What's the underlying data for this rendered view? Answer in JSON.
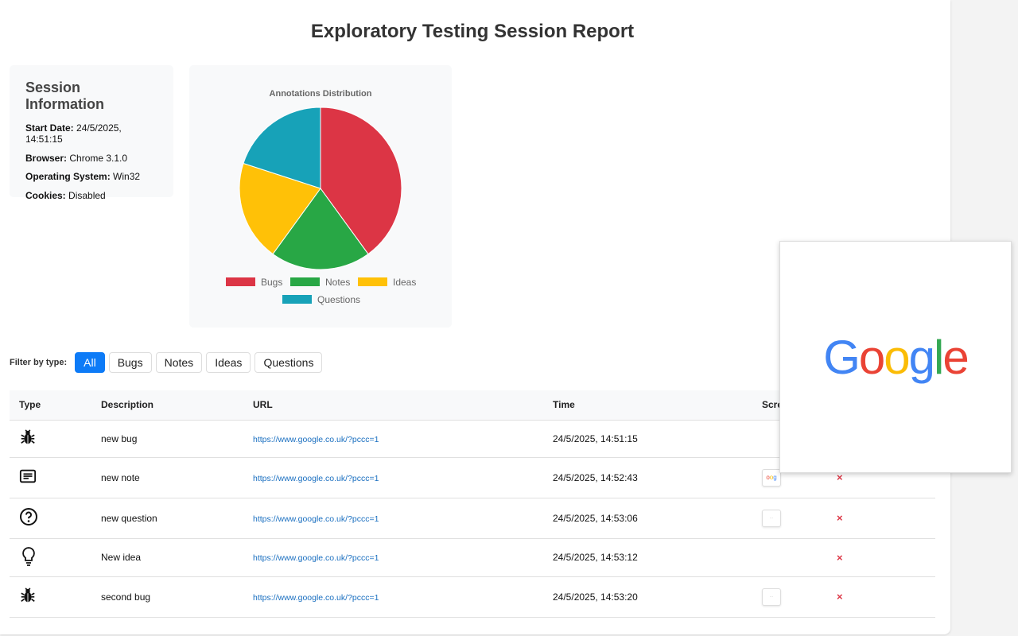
{
  "title": "Exploratory Testing Session Report",
  "session": {
    "heading": "Session Information",
    "fields": [
      {
        "label": "Start Date:",
        "value": "24/5/2025, 14:51:15"
      },
      {
        "label": "Browser:",
        "value": "Chrome 3.1.0"
      },
      {
        "label": "Operating System:",
        "value": "Win32"
      },
      {
        "label": "Cookies:",
        "value": "Disabled"
      }
    ]
  },
  "chart_data": {
    "type": "pie",
    "title": "Annotations Distribution",
    "categories": [
      "Bugs",
      "Notes",
      "Ideas",
      "Questions"
    ],
    "values": [
      2,
      1,
      1,
      1
    ],
    "colors": [
      "#dc3545",
      "#28a745",
      "#ffc107",
      "#17a2b8"
    ],
    "legend": "bottom"
  },
  "filter": {
    "label": "Filter by type:",
    "options": [
      "All",
      "Bugs",
      "Notes",
      "Ideas",
      "Questions"
    ],
    "active": "All"
  },
  "table": {
    "headers": [
      "Type",
      "Description",
      "URL",
      "Time",
      "Screenshot"
    ],
    "rows": [
      {
        "type": "bug",
        "icon": "bug-icon",
        "description": "new bug",
        "url": "https://www.google.co.uk/?pccc=1",
        "time": "24/5/2025, 14:51:15",
        "screenshot": "none"
      },
      {
        "type": "note",
        "icon": "note-icon",
        "description": "new note",
        "url": "https://www.google.co.uk/?pccc=1",
        "time": "24/5/2025, 14:52:43",
        "screenshot": "google"
      },
      {
        "type": "question",
        "icon": "question-icon",
        "description": "new question",
        "url": "https://www.google.co.uk/?pccc=1",
        "time": "24/5/2025, 14:53:06",
        "screenshot": "blank"
      },
      {
        "type": "idea",
        "icon": "lightbulb-icon",
        "description": "New idea",
        "url": "https://www.google.co.uk/?pccc=1",
        "time": "24/5/2025, 14:53:12",
        "screenshot": "none"
      },
      {
        "type": "bug",
        "icon": "bug-icon",
        "description": "second bug",
        "url": "https://www.google.co.uk/?pccc=1",
        "time": "24/5/2025, 14:53:20",
        "screenshot": "blank"
      }
    ]
  },
  "delete_icon": "×",
  "preview": {
    "logo": "Google"
  }
}
